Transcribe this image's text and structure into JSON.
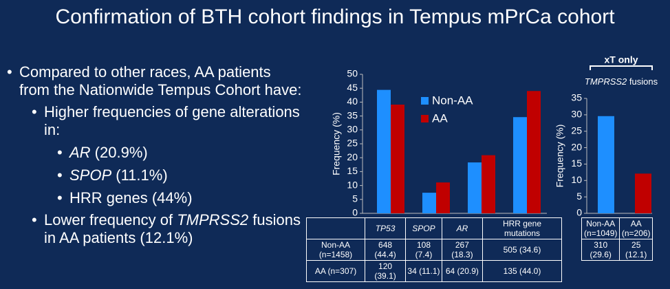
{
  "title": "Confirmation of BTH cohort findings in Tempus mPrCa cohort",
  "bullets": [
    {
      "level": 1,
      "parts": [
        {
          "text": "Compared to other races, AA patients from the Nationwide Tempus Cohort have:"
        }
      ]
    },
    {
      "level": 2,
      "parts": [
        {
          "text": "Higher frequencies of gene alterations in:"
        }
      ]
    },
    {
      "level": 3,
      "parts": [
        {
          "text": "AR",
          "style": "italic"
        },
        {
          "text": " (20.9%)"
        }
      ]
    },
    {
      "level": 3,
      "parts": [
        {
          "text": "SPOP",
          "style": "italic"
        },
        {
          "text": " (11.1%)"
        }
      ]
    },
    {
      "level": 3,
      "parts": [
        {
          "text": "HRR genes (44%)"
        }
      ]
    },
    {
      "level": 2,
      "parts": [
        {
          "text": "Lower frequency of "
        },
        {
          "text": "TMPRSS2",
          "style": "italic"
        },
        {
          "text": " fusions in AA patients (12.1%)"
        }
      ]
    }
  ],
  "chart_data": [
    {
      "type": "bar",
      "y_label": "Frequency (%)",
      "categories": [
        "TP53",
        "SPOP",
        "AR",
        "HRR gene mutations"
      ],
      "category_styles": [
        "italic",
        "italic",
        "italic",
        "normal"
      ],
      "series": [
        {
          "name": "Non-AA",
          "color": "#1e8fff",
          "values": [
            44.4,
            7.4,
            18.3,
            34.6
          ]
        },
        {
          "name": "AA",
          "color": "#c00000",
          "values": [
            39.1,
            11.1,
            20.9,
            44.0
          ]
        }
      ],
      "ylim": [
        0,
        50
      ],
      "yticks": [
        0,
        5,
        10,
        15,
        20,
        25,
        30,
        35,
        40,
        45,
        50
      ],
      "table_rows": [
        {
          "label": "Non-AA (n=1458)",
          "cells": [
            "648 (44.4)",
            "108 (7.4)",
            "267 (18.3)",
            "505 (34.6)"
          ]
        },
        {
          "label": "AA (n=307)",
          "cells": [
            "120 (39.1)",
            "34 (11.1)",
            "64 (20.9)",
            "135 (44.0)"
          ]
        }
      ]
    },
    {
      "type": "bar",
      "header": "xT only",
      "subtitle": [
        {
          "text": "TMPRSS2",
          "style": "italic"
        },
        {
          "text": " fusions"
        }
      ],
      "y_label": "Frequency (%)",
      "categories": [
        "Non-AA (n=1049)",
        "AA (n=206)"
      ],
      "values": [
        29.6,
        12.1
      ],
      "colors": [
        "#1e8fff",
        "#c00000"
      ],
      "ylim": [
        0,
        35
      ],
      "yticks": [
        0,
        5,
        10,
        15,
        20,
        25,
        30,
        35
      ],
      "table_rows": [
        {
          "cells": [
            "310 (29.6)",
            "25 (12.1)"
          ]
        }
      ]
    }
  ]
}
